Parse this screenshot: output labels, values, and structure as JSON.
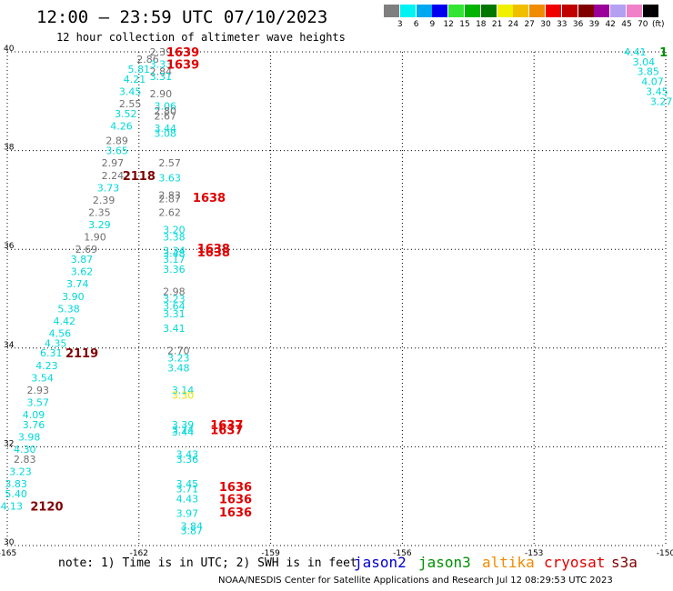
{
  "header": {
    "title": "12:00 — 23:59 UTC 07/10/2023",
    "subtitle": "12 hour collection of altimeter wave heights"
  },
  "color_scale": {
    "colors": [
      "#7f7f7f",
      "#00f2f2",
      "#00a8f0",
      "#0000f0",
      "#33e533",
      "#00b400",
      "#007800",
      "#f0f000",
      "#f0c000",
      "#f08c00",
      "#f00000",
      "#c00000",
      "#800000",
      "#9a009a",
      "#b4a0f0",
      "#f080c8",
      "#000000"
    ],
    "labels": [
      "3",
      "6",
      "9",
      "12",
      "15",
      "18",
      "21",
      "24",
      "27",
      "30",
      "33",
      "36",
      "39",
      "42",
      "45",
      "70"
    ],
    "unit": "(ft)"
  },
  "note": "note:  1) Time is in UTC; 2) SWH is in feet",
  "satellites": [
    {
      "name": "jason2",
      "color": "#0000d0"
    },
    {
      "name": "jason3",
      "color": "#009000"
    },
    {
      "name": "altika",
      "color": "#f08c00"
    },
    {
      "name": "cryosat",
      "color": "#e00000"
    },
    {
      "name": "s3a",
      "color": "#800000"
    }
  ],
  "footer": "NOAA/NESDIS Center for Satellite Applications and Research    Jul 12 08:29:53 UTC 2023",
  "chart_data": {
    "type": "scatter",
    "xlim": [
      -165,
      -150
    ],
    "ylim": [
      30,
      40
    ],
    "x_ticks": [
      "-165",
      "-162",
      "-159",
      "-156",
      "-153",
      "-150"
    ],
    "y_ticks": [
      "30",
      "32",
      "34",
      "36",
      "38",
      "40"
    ],
    "grid": true,
    "wave_height_labels": [
      {
        "x": -161.5,
        "y": 40.0,
        "text": "2.39",
        "color": "#707070"
      },
      {
        "x": -161.8,
        "y": 39.85,
        "text": "2.86",
        "color": "#707070"
      },
      {
        "x": -161.5,
        "y": 39.75,
        "text": "3.33",
        "color": "#00d8d8"
      },
      {
        "x": -161.5,
        "y": 39.6,
        "text": "2.84",
        "color": "#707070"
      },
      {
        "x": -162.0,
        "y": 39.65,
        "text": "5.81",
        "color": "#00d8d8"
      },
      {
        "x": -161.5,
        "y": 39.5,
        "text": "3.31",
        "color": "#00d8d8"
      },
      {
        "x": -162.1,
        "y": 39.45,
        "text": "4.21",
        "color": "#00d8d8"
      },
      {
        "x": -162.2,
        "y": 39.2,
        "text": "3.45",
        "color": "#00d8d8"
      },
      {
        "x": -161.5,
        "y": 39.15,
        "text": "2.90",
        "color": "#707070"
      },
      {
        "x": -162.2,
        "y": 38.95,
        "text": "2.55",
        "color": "#707070"
      },
      {
        "x": -161.4,
        "y": 38.9,
        "text": "3.06",
        "color": "#00d8d8"
      },
      {
        "x": -162.3,
        "y": 38.75,
        "text": "3.52",
        "color": "#00d8d8"
      },
      {
        "x": -161.4,
        "y": 38.8,
        "text": "2.80",
        "color": "#707070"
      },
      {
        "x": -161.4,
        "y": 38.7,
        "text": "2.67",
        "color": "#707070"
      },
      {
        "x": -162.4,
        "y": 38.5,
        "text": "4.26",
        "color": "#00d8d8"
      },
      {
        "x": -161.4,
        "y": 38.45,
        "text": "3.44",
        "color": "#00d8d8"
      },
      {
        "x": -161.4,
        "y": 38.35,
        "text": "3.08",
        "color": "#00d8d8"
      },
      {
        "x": -162.5,
        "y": 38.2,
        "text": "2.89",
        "color": "#707070"
      },
      {
        "x": -162.5,
        "y": 38.0,
        "text": "3.65",
        "color": "#00d8d8"
      },
      {
        "x": -162.6,
        "y": 37.75,
        "text": "2.97",
        "color": "#707070"
      },
      {
        "x": -161.3,
        "y": 37.75,
        "text": "2.57",
        "color": "#707070"
      },
      {
        "x": -162.6,
        "y": 37.5,
        "text": "2.24",
        "color": "#707070"
      },
      {
        "x": -161.3,
        "y": 37.45,
        "text": "3.63",
        "color": "#00d8d8"
      },
      {
        "x": -162.7,
        "y": 37.25,
        "text": "3.73",
        "color": "#00d8d8"
      },
      {
        "x": -161.3,
        "y": 37.1,
        "text": "2.83",
        "color": "#707070"
      },
      {
        "x": -161.3,
        "y": 37.03,
        "text": "2.87",
        "color": "#707070"
      },
      {
        "x": -162.8,
        "y": 37.0,
        "text": "2.39",
        "color": "#707070"
      },
      {
        "x": -162.9,
        "y": 36.75,
        "text": "2.35",
        "color": "#707070"
      },
      {
        "x": -161.3,
        "y": 36.75,
        "text": "2.62",
        "color": "#707070"
      },
      {
        "x": -162.9,
        "y": 36.5,
        "text": "3.29",
        "color": "#00d8d8"
      },
      {
        "x": -161.2,
        "y": 36.4,
        "text": "3.20",
        "color": "#00d8d8"
      },
      {
        "x": -161.2,
        "y": 36.25,
        "text": "3.38",
        "color": "#00d8d8"
      },
      {
        "x": -163.0,
        "y": 36.25,
        "text": "1.90",
        "color": "#707070"
      },
      {
        "x": -163.2,
        "y": 36.0,
        "text": "2.69",
        "color": "#707070"
      },
      {
        "x": -161.2,
        "y": 35.98,
        "text": "3.34",
        "color": "#00d8d8"
      },
      {
        "x": -161.2,
        "y": 35.92,
        "text": "3.48",
        "color": "#00d8d8"
      },
      {
        "x": -161.2,
        "y": 35.8,
        "text": "3.17",
        "color": "#00d8d8"
      },
      {
        "x": -163.3,
        "y": 35.8,
        "text": "3.87",
        "color": "#00d8d8"
      },
      {
        "x": -161.2,
        "y": 35.6,
        "text": "3.36",
        "color": "#00d8d8"
      },
      {
        "x": -163.3,
        "y": 35.55,
        "text": "3.62",
        "color": "#00d8d8"
      },
      {
        "x": -163.4,
        "y": 35.3,
        "text": "3.74",
        "color": "#00d8d8"
      },
      {
        "x": -161.2,
        "y": 35.15,
        "text": "2.98",
        "color": "#707070"
      },
      {
        "x": -163.5,
        "y": 35.05,
        "text": "3.90",
        "color": "#00d8d8"
      },
      {
        "x": -161.2,
        "y": 35.0,
        "text": "3.23",
        "color": "#00d8d8"
      },
      {
        "x": -161.2,
        "y": 34.85,
        "text": "3.64",
        "color": "#00d8d8"
      },
      {
        "x": -163.6,
        "y": 34.8,
        "text": "5.38",
        "color": "#00d8d8"
      },
      {
        "x": -161.2,
        "y": 34.7,
        "text": "3.31",
        "color": "#00d8d8"
      },
      {
        "x": -163.7,
        "y": 34.55,
        "text": "4.42",
        "color": "#00d8d8"
      },
      {
        "x": -161.2,
        "y": 34.4,
        "text": "3.41",
        "color": "#00d8d8"
      },
      {
        "x": -163.8,
        "y": 34.3,
        "text": "4.56",
        "color": "#00d8d8"
      },
      {
        "x": -163.9,
        "y": 34.1,
        "text": "4.35",
        "color": "#00d8d8"
      },
      {
        "x": -161.1,
        "y": 33.95,
        "text": "2.70",
        "color": "#707070"
      },
      {
        "x": -164.0,
        "y": 33.9,
        "text": "6.31",
        "color": "#00d8d8"
      },
      {
        "x": -161.1,
        "y": 33.8,
        "text": "3.23",
        "color": "#00d8d8"
      },
      {
        "x": -164.1,
        "y": 33.65,
        "text": "4.23",
        "color": "#00d8d8"
      },
      {
        "x": -161.1,
        "y": 33.6,
        "text": "3.48",
        "color": "#00d8d8"
      },
      {
        "x": -164.2,
        "y": 33.4,
        "text": "3.54",
        "color": "#00d8d8"
      },
      {
        "x": -164.3,
        "y": 33.15,
        "text": "2.93",
        "color": "#707070"
      },
      {
        "x": -161.0,
        "y": 33.15,
        "text": "3.14",
        "color": "#00d8d8"
      },
      {
        "x": -161.0,
        "y": 33.05,
        "text": "3.30",
        "color": "#e6e600"
      },
      {
        "x": -164.3,
        "y": 32.9,
        "text": "3.57",
        "color": "#00d8d8"
      },
      {
        "x": -164.4,
        "y": 32.65,
        "text": "4.09",
        "color": "#00d8d8"
      },
      {
        "x": -164.4,
        "y": 32.45,
        "text": "3.76",
        "color": "#00d8d8"
      },
      {
        "x": -161.0,
        "y": 32.45,
        "text": "3.39",
        "color": "#00d8d8"
      },
      {
        "x": -161.0,
        "y": 32.35,
        "text": "3.74",
        "color": "#00d8d8"
      },
      {
        "x": -161.0,
        "y": 32.3,
        "text": "3.44",
        "color": "#00d8d8"
      },
      {
        "x": -164.5,
        "y": 32.2,
        "text": "3.98",
        "color": "#00d8d8"
      },
      {
        "x": -164.6,
        "y": 31.95,
        "text": "4.30",
        "color": "#00d8d8"
      },
      {
        "x": -160.9,
        "y": 31.85,
        "text": "3.43",
        "color": "#00d8d8"
      },
      {
        "x": -160.9,
        "y": 31.75,
        "text": "3.36",
        "color": "#00d8d8"
      },
      {
        "x": -164.6,
        "y": 31.75,
        "text": "2.83",
        "color": "#707070"
      },
      {
        "x": -164.7,
        "y": 31.5,
        "text": "3.23",
        "color": "#00d8d8"
      },
      {
        "x": -164.8,
        "y": 31.25,
        "text": "3.83",
        "color": "#00d8d8"
      },
      {
        "x": -160.9,
        "y": 31.25,
        "text": "3.45",
        "color": "#00d8d8"
      },
      {
        "x": -160.9,
        "y": 31.15,
        "text": "3.71",
        "color": "#00d8d8"
      },
      {
        "x": -164.8,
        "y": 31.05,
        "text": "5.40",
        "color": "#00d8d8"
      },
      {
        "x": -160.9,
        "y": 30.95,
        "text": "4.43",
        "color": "#00d8d8"
      },
      {
        "x": -164.9,
        "y": 30.8,
        "text": "4.13",
        "color": "#00d8d8"
      },
      {
        "x": -160.9,
        "y": 30.65,
        "text": "3.97",
        "color": "#00d8d8"
      },
      {
        "x": -160.8,
        "y": 30.4,
        "text": "3.84",
        "color": "#00d8d8"
      },
      {
        "x": -160.8,
        "y": 30.3,
        "text": "3.87",
        "color": "#00d8d8"
      },
      {
        "x": -150.7,
        "y": 40.0,
        "text": "4.41",
        "color": "#00d8d8"
      },
      {
        "x": -150.5,
        "y": 39.8,
        "text": "3.04",
        "color": "#00d8d8"
      },
      {
        "x": -150.4,
        "y": 39.6,
        "text": "3.85",
        "color": "#00d8d8"
      },
      {
        "x": -150.3,
        "y": 39.4,
        "text": "4.07",
        "color": "#00d8d8"
      },
      {
        "x": -150.2,
        "y": 39.2,
        "text": "3.45",
        "color": "#00d8d8"
      },
      {
        "x": -150.1,
        "y": 39.0,
        "text": "3.27",
        "color": "#00d8d8"
      }
    ],
    "time_labels": [
      {
        "x": -161.0,
        "y": 40.0,
        "text": "1639",
        "color": "#e00000"
      },
      {
        "x": -161.0,
        "y": 39.75,
        "text": "1639",
        "color": "#e00000"
      },
      {
        "x": -162.0,
        "y": 37.5,
        "text": "2118",
        "color": "#800000"
      },
      {
        "x": -160.4,
        "y": 37.05,
        "text": "1638",
        "color": "#e00000"
      },
      {
        "x": -160.3,
        "y": 36.02,
        "text": "1638",
        "color": "#e00000"
      },
      {
        "x": -160.3,
        "y": 35.95,
        "text": "1638",
        "color": "#e00000"
      },
      {
        "x": -163.3,
        "y": 33.9,
        "text": "2119",
        "color": "#800000"
      },
      {
        "x": -160.0,
        "y": 32.45,
        "text": "1637",
        "color": "#e00000"
      },
      {
        "x": -160.0,
        "y": 32.35,
        "text": "1637",
        "color": "#e00000"
      },
      {
        "x": -159.8,
        "y": 31.2,
        "text": "1636",
        "color": "#e00000"
      },
      {
        "x": -159.8,
        "y": 30.95,
        "text": "1636",
        "color": "#e00000"
      },
      {
        "x": -159.8,
        "y": 30.68,
        "text": "1636",
        "color": "#e00000"
      },
      {
        "x": -164.1,
        "y": 30.8,
        "text": "2120",
        "color": "#800000"
      },
      {
        "x": -150.05,
        "y": 40.0,
        "text": "1",
        "color": "#009000"
      }
    ]
  }
}
